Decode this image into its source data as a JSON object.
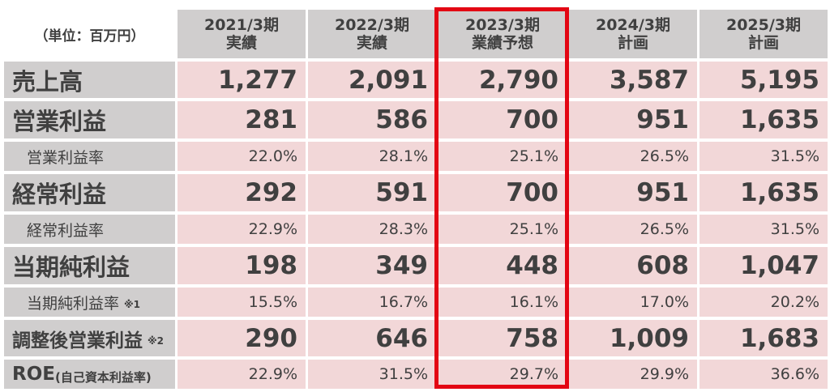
{
  "unit_label": "（単位：百万円）",
  "columns": [
    {
      "year": "2021/3期",
      "type": "実績"
    },
    {
      "year": "2022/3期",
      "type": "実績"
    },
    {
      "year": "2023/3期",
      "type": "業績予想"
    },
    {
      "year": "2024/3期",
      "type": "計画"
    },
    {
      "year": "2025/3期",
      "type": "計画"
    }
  ],
  "rows": [
    {
      "label": "売上高",
      "note": "",
      "values": [
        "1,277",
        "2,091",
        "2,790",
        "3,587",
        "5,195"
      ]
    },
    {
      "label": "営業利益",
      "note": "",
      "values": [
        "281",
        "586",
        "700",
        "951",
        "1,635"
      ]
    },
    {
      "label": "営業利益率",
      "note": "",
      "values": [
        "22.0%",
        "28.1%",
        "25.1%",
        "26.5%",
        "31.5%"
      ]
    },
    {
      "label": "経常利益",
      "note": "",
      "values": [
        "292",
        "591",
        "700",
        "951",
        "1,635"
      ]
    },
    {
      "label": "経常利益率",
      "note": "",
      "values": [
        "22.9%",
        "28.3%",
        "25.1%",
        "26.5%",
        "31.5%"
      ]
    },
    {
      "label": "当期純利益",
      "note": "",
      "values": [
        "198",
        "349",
        "448",
        "608",
        "1,047"
      ]
    },
    {
      "label": "当期純利益率",
      "note": "※1",
      "values": [
        "15.5%",
        "16.7%",
        "16.1%",
        "17.0%",
        "20.2%"
      ]
    },
    {
      "label": "調整後営業利益",
      "note": "※2",
      "values": [
        "290",
        "646",
        "758",
        "1,009",
        "1,683"
      ]
    },
    {
      "label": "ROE",
      "note": "(自己資本利益率)",
      "values": [
        "22.9%",
        "31.5%",
        "29.7%",
        "29.9%",
        "36.6%"
      ]
    }
  ],
  "colors": {
    "header_bg": "#d0cece",
    "cell_bg": "#f2d7d8",
    "highlight": "#e30613",
    "text": "#404040"
  }
}
